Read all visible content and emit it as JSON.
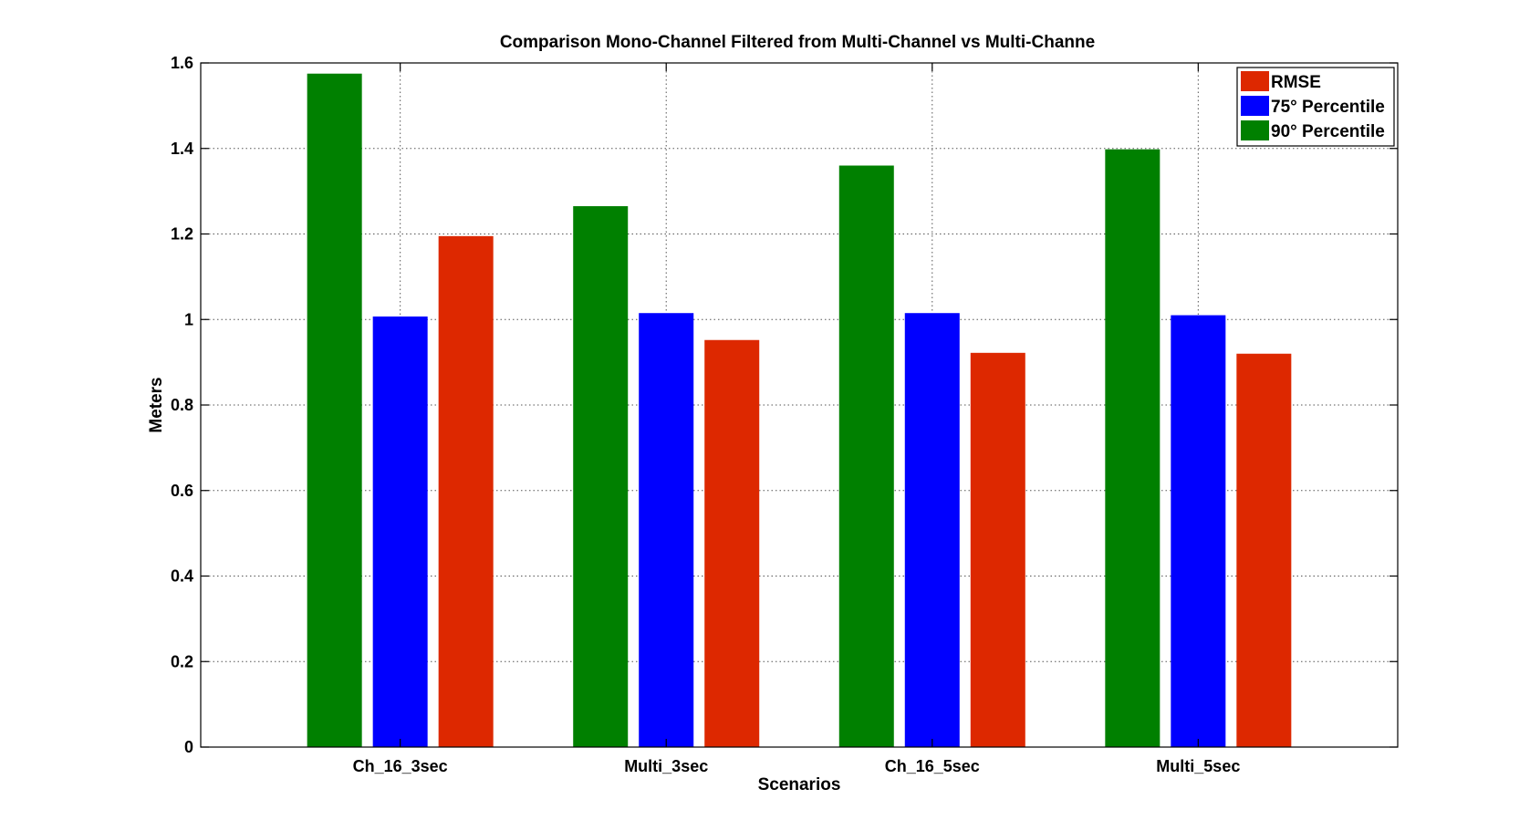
{
  "chart_data": {
    "type": "bar",
    "title": "Comparison Mono-Channel Filtered from Multi-Channel vs Multi-Channe",
    "xlabel": "Scenarios",
    "ylabel": "Meters",
    "categories": [
      "Ch_16_3sec",
      "Multi_3sec",
      "Ch_16_5sec",
      "Multi_5sec"
    ],
    "series": [
      {
        "name": "90° Percentile",
        "color": "#008000",
        "values": [
          1.575,
          1.265,
          1.36,
          1.398
        ]
      },
      {
        "name": "75° Percentile",
        "color": "#0000ff",
        "values": [
          1.007,
          1.015,
          1.015,
          1.01
        ]
      },
      {
        "name": "RMSE",
        "color": "#dd2800",
        "values": [
          1.195,
          0.952,
          0.922,
          0.92
        ]
      }
    ],
    "legend_order": [
      "RMSE",
      "75° Percentile",
      "90° Percentile"
    ],
    "ylim": [
      0,
      1.6
    ],
    "yticks": [
      0,
      0.2,
      0.4,
      0.6,
      0.8,
      1,
      1.2,
      1.4,
      1.6
    ],
    "ytick_labels": [
      "0",
      "0.2",
      "0.4",
      "0.6",
      "0.8",
      "1",
      "1.2",
      "1.4",
      "1.6"
    ],
    "grid": true,
    "legend_position": "top-right"
  }
}
